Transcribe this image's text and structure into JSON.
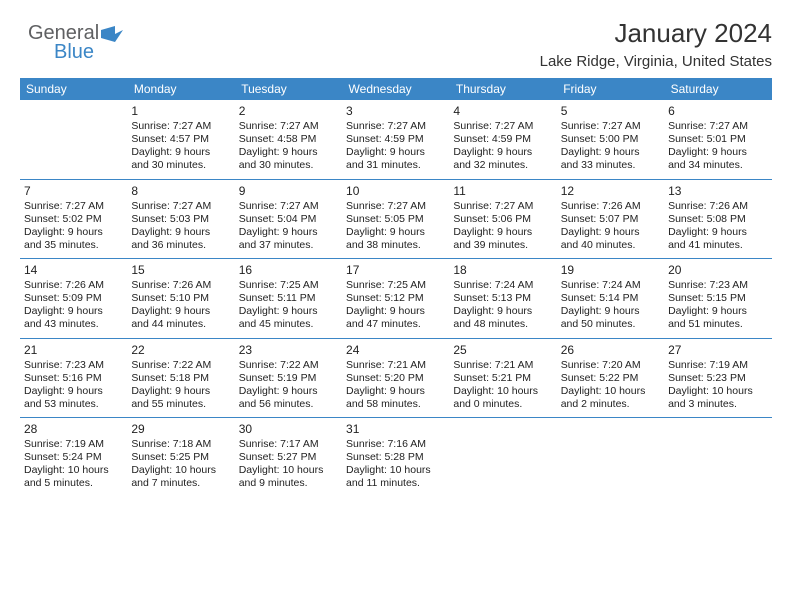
{
  "logo": {
    "word1": "General",
    "word2": "Blue",
    "word1_color": "#5f6062",
    "word2_color": "#3b86c6"
  },
  "title": "January 2024",
  "location": "Lake Ridge, Virginia, United States",
  "colors": {
    "header_bg": "#3b86c6",
    "header_text": "#ffffff",
    "grid_line": "#3b86c6",
    "text": "#222222",
    "background": "#ffffff"
  },
  "day_headers": [
    "Sunday",
    "Monday",
    "Tuesday",
    "Wednesday",
    "Thursday",
    "Friday",
    "Saturday"
  ],
  "weeks": [
    [
      null,
      {
        "n": "1",
        "sunrise": "Sunrise: 7:27 AM",
        "sunset": "Sunset: 4:57 PM",
        "d1": "Daylight: 9 hours",
        "d2": "and 30 minutes."
      },
      {
        "n": "2",
        "sunrise": "Sunrise: 7:27 AM",
        "sunset": "Sunset: 4:58 PM",
        "d1": "Daylight: 9 hours",
        "d2": "and 30 minutes."
      },
      {
        "n": "3",
        "sunrise": "Sunrise: 7:27 AM",
        "sunset": "Sunset: 4:59 PM",
        "d1": "Daylight: 9 hours",
        "d2": "and 31 minutes."
      },
      {
        "n": "4",
        "sunrise": "Sunrise: 7:27 AM",
        "sunset": "Sunset: 4:59 PM",
        "d1": "Daylight: 9 hours",
        "d2": "and 32 minutes."
      },
      {
        "n": "5",
        "sunrise": "Sunrise: 7:27 AM",
        "sunset": "Sunset: 5:00 PM",
        "d1": "Daylight: 9 hours",
        "d2": "and 33 minutes."
      },
      {
        "n": "6",
        "sunrise": "Sunrise: 7:27 AM",
        "sunset": "Sunset: 5:01 PM",
        "d1": "Daylight: 9 hours",
        "d2": "and 34 minutes."
      }
    ],
    [
      {
        "n": "7",
        "sunrise": "Sunrise: 7:27 AM",
        "sunset": "Sunset: 5:02 PM",
        "d1": "Daylight: 9 hours",
        "d2": "and 35 minutes."
      },
      {
        "n": "8",
        "sunrise": "Sunrise: 7:27 AM",
        "sunset": "Sunset: 5:03 PM",
        "d1": "Daylight: 9 hours",
        "d2": "and 36 minutes."
      },
      {
        "n": "9",
        "sunrise": "Sunrise: 7:27 AM",
        "sunset": "Sunset: 5:04 PM",
        "d1": "Daylight: 9 hours",
        "d2": "and 37 minutes."
      },
      {
        "n": "10",
        "sunrise": "Sunrise: 7:27 AM",
        "sunset": "Sunset: 5:05 PM",
        "d1": "Daylight: 9 hours",
        "d2": "and 38 minutes."
      },
      {
        "n": "11",
        "sunrise": "Sunrise: 7:27 AM",
        "sunset": "Sunset: 5:06 PM",
        "d1": "Daylight: 9 hours",
        "d2": "and 39 minutes."
      },
      {
        "n": "12",
        "sunrise": "Sunrise: 7:26 AM",
        "sunset": "Sunset: 5:07 PM",
        "d1": "Daylight: 9 hours",
        "d2": "and 40 minutes."
      },
      {
        "n": "13",
        "sunrise": "Sunrise: 7:26 AM",
        "sunset": "Sunset: 5:08 PM",
        "d1": "Daylight: 9 hours",
        "d2": "and 41 minutes."
      }
    ],
    [
      {
        "n": "14",
        "sunrise": "Sunrise: 7:26 AM",
        "sunset": "Sunset: 5:09 PM",
        "d1": "Daylight: 9 hours",
        "d2": "and 43 minutes."
      },
      {
        "n": "15",
        "sunrise": "Sunrise: 7:26 AM",
        "sunset": "Sunset: 5:10 PM",
        "d1": "Daylight: 9 hours",
        "d2": "and 44 minutes."
      },
      {
        "n": "16",
        "sunrise": "Sunrise: 7:25 AM",
        "sunset": "Sunset: 5:11 PM",
        "d1": "Daylight: 9 hours",
        "d2": "and 45 minutes."
      },
      {
        "n": "17",
        "sunrise": "Sunrise: 7:25 AM",
        "sunset": "Sunset: 5:12 PM",
        "d1": "Daylight: 9 hours",
        "d2": "and 47 minutes."
      },
      {
        "n": "18",
        "sunrise": "Sunrise: 7:24 AM",
        "sunset": "Sunset: 5:13 PM",
        "d1": "Daylight: 9 hours",
        "d2": "and 48 minutes."
      },
      {
        "n": "19",
        "sunrise": "Sunrise: 7:24 AM",
        "sunset": "Sunset: 5:14 PM",
        "d1": "Daylight: 9 hours",
        "d2": "and 50 minutes."
      },
      {
        "n": "20",
        "sunrise": "Sunrise: 7:23 AM",
        "sunset": "Sunset: 5:15 PM",
        "d1": "Daylight: 9 hours",
        "d2": "and 51 minutes."
      }
    ],
    [
      {
        "n": "21",
        "sunrise": "Sunrise: 7:23 AM",
        "sunset": "Sunset: 5:16 PM",
        "d1": "Daylight: 9 hours",
        "d2": "and 53 minutes."
      },
      {
        "n": "22",
        "sunrise": "Sunrise: 7:22 AM",
        "sunset": "Sunset: 5:18 PM",
        "d1": "Daylight: 9 hours",
        "d2": "and 55 minutes."
      },
      {
        "n": "23",
        "sunrise": "Sunrise: 7:22 AM",
        "sunset": "Sunset: 5:19 PM",
        "d1": "Daylight: 9 hours",
        "d2": "and 56 minutes."
      },
      {
        "n": "24",
        "sunrise": "Sunrise: 7:21 AM",
        "sunset": "Sunset: 5:20 PM",
        "d1": "Daylight: 9 hours",
        "d2": "and 58 minutes."
      },
      {
        "n": "25",
        "sunrise": "Sunrise: 7:21 AM",
        "sunset": "Sunset: 5:21 PM",
        "d1": "Daylight: 10 hours",
        "d2": "and 0 minutes."
      },
      {
        "n": "26",
        "sunrise": "Sunrise: 7:20 AM",
        "sunset": "Sunset: 5:22 PM",
        "d1": "Daylight: 10 hours",
        "d2": "and 2 minutes."
      },
      {
        "n": "27",
        "sunrise": "Sunrise: 7:19 AM",
        "sunset": "Sunset: 5:23 PM",
        "d1": "Daylight: 10 hours",
        "d2": "and 3 minutes."
      }
    ],
    [
      {
        "n": "28",
        "sunrise": "Sunrise: 7:19 AM",
        "sunset": "Sunset: 5:24 PM",
        "d1": "Daylight: 10 hours",
        "d2": "and 5 minutes."
      },
      {
        "n": "29",
        "sunrise": "Sunrise: 7:18 AM",
        "sunset": "Sunset: 5:25 PM",
        "d1": "Daylight: 10 hours",
        "d2": "and 7 minutes."
      },
      {
        "n": "30",
        "sunrise": "Sunrise: 7:17 AM",
        "sunset": "Sunset: 5:27 PM",
        "d1": "Daylight: 10 hours",
        "d2": "and 9 minutes."
      },
      {
        "n": "31",
        "sunrise": "Sunrise: 7:16 AM",
        "sunset": "Sunset: 5:28 PM",
        "d1": "Daylight: 10 hours",
        "d2": "and 11 minutes."
      },
      null,
      null,
      null
    ]
  ]
}
